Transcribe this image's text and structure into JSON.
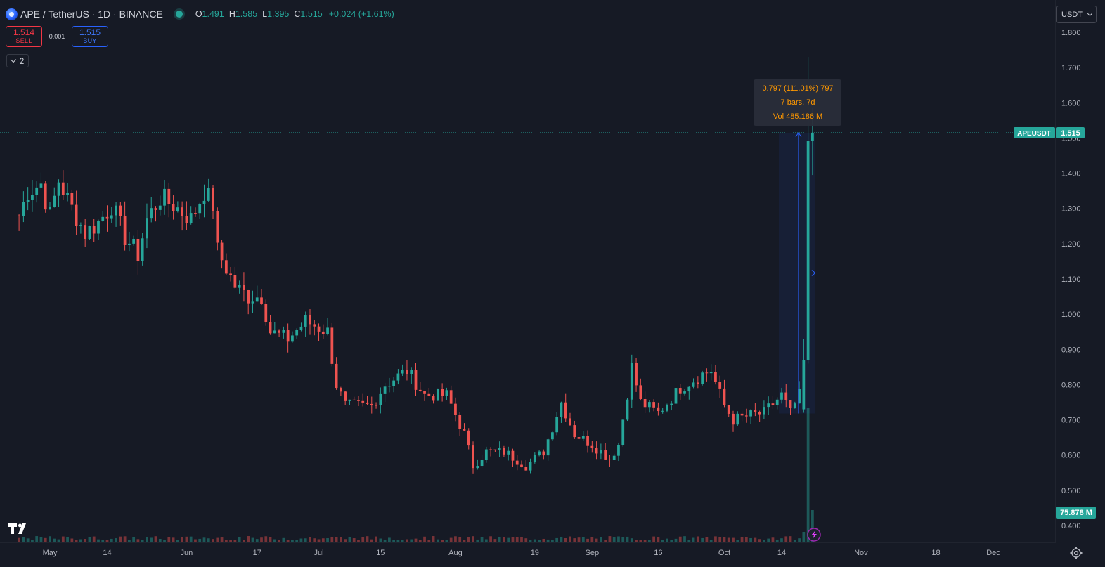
{
  "header": {
    "symbol_title": "APE / TetherUS · 1D · BINANCE",
    "ohlc": {
      "open_label": "O",
      "open": "1.491",
      "high_label": "H",
      "high": "1.585",
      "low_label": "L",
      "low": "1.395",
      "close_label": "C",
      "close": "1.515",
      "change": "+0.024 (+1.61%)"
    },
    "colors": {
      "up": "#26a69a",
      "down": "#ef5350",
      "background": "#161a25",
      "accent": "#2962ff"
    }
  },
  "trade": {
    "sell_price": "1.514",
    "sell_label": "SELL",
    "spread": "0.001",
    "buy_price": "1.515",
    "buy_label": "BUY"
  },
  "indicators_toggle": {
    "count": "2"
  },
  "currency": {
    "selected": "USDT"
  },
  "measure_tooltip": {
    "line1": "0.797 (111.01%) 797",
    "line2": "7 bars, 7d",
    "line3": "Vol 485.186 M"
  },
  "price_label": {
    "symbol": "APEUSDT",
    "value": "1.515"
  },
  "volume_label": {
    "value": "75.878 M"
  },
  "icons": [
    "symbol-logo-icon",
    "market-status-icon",
    "chevron-down-icon",
    "tradingview-logo-icon",
    "settings-icon",
    "lightning-icon"
  ],
  "chart_data": {
    "type": "candlestick",
    "title": "APE / TetherUS · 1D · BINANCE",
    "ylim": [
      0.38,
      1.86
    ],
    "y_ticks": [
      "1.800",
      "1.700",
      "1.600",
      "1.500",
      "1.400",
      "1.300",
      "1.200",
      "1.100",
      "1.000",
      "0.900",
      "0.800",
      "0.700",
      "0.600",
      "0.500",
      "0.400"
    ],
    "y_tick_values": [
      1.8,
      1.7,
      1.6,
      1.5,
      1.4,
      1.3,
      1.2,
      1.1,
      1.0,
      0.9,
      0.8,
      0.7,
      0.6,
      0.5,
      0.4
    ],
    "x_ticks": [
      {
        "label": "May",
        "date": "2024-05-01"
      },
      {
        "label": "14",
        "date": "2024-05-14"
      },
      {
        "label": "Jun",
        "date": "2024-06-01"
      },
      {
        "label": "17",
        "date": "2024-06-17"
      },
      {
        "label": "Jul",
        "date": "2024-07-01"
      },
      {
        "label": "15",
        "date": "2024-07-15"
      },
      {
        "label": "Aug",
        "date": "2024-08-01"
      },
      {
        "label": "19",
        "date": "2024-08-19"
      },
      {
        "label": "Sep",
        "date": "2024-09-01"
      },
      {
        "label": "16",
        "date": "2024-09-16"
      },
      {
        "label": "Oct",
        "date": "2024-10-01"
      },
      {
        "label": "14",
        "date": "2024-10-14"
      },
      {
        "label": "Nov",
        "date": "2024-11-01"
      },
      {
        "label": "18",
        "date": "2024-11-18"
      },
      {
        "label": "Dec",
        "date": "2024-12-01"
      }
    ],
    "last_price": 1.515,
    "grid": false,
    "keypoints": [
      {
        "date": "2024-04-24",
        "close": 1.28
      },
      {
        "date": "2024-04-26",
        "close": 1.35
      },
      {
        "date": "2024-04-29",
        "close": 1.37
      },
      {
        "date": "2024-05-01",
        "close": 1.28
      },
      {
        "date": "2024-05-03",
        "close": 1.38
      },
      {
        "date": "2024-05-06",
        "close": 1.3
      },
      {
        "date": "2024-05-09",
        "close": 1.23
      },
      {
        "date": "2024-05-12",
        "close": 1.26
      },
      {
        "date": "2024-05-15",
        "close": 1.31
      },
      {
        "date": "2024-05-18",
        "close": 1.22
      },
      {
        "date": "2024-05-21",
        "close": 1.17
      },
      {
        "date": "2024-05-23",
        "close": 1.27
      },
      {
        "date": "2024-05-26",
        "close": 1.33
      },
      {
        "date": "2024-05-29",
        "close": 1.31
      },
      {
        "date": "2024-06-02",
        "close": 1.27
      },
      {
        "date": "2024-06-05",
        "close": 1.35
      },
      {
        "date": "2024-06-07",
        "close": 1.31
      },
      {
        "date": "2024-06-08",
        "close": 1.18
      },
      {
        "date": "2024-06-12",
        "close": 1.08
      },
      {
        "date": "2024-06-15",
        "close": 1.05
      },
      {
        "date": "2024-06-18",
        "close": 1.05
      },
      {
        "date": "2024-06-20",
        "close": 0.95
      },
      {
        "date": "2024-06-24",
        "close": 0.93
      },
      {
        "date": "2024-06-28",
        "close": 0.98
      },
      {
        "date": "2024-07-03",
        "close": 0.95
      },
      {
        "date": "2024-07-05",
        "close": 0.8
      },
      {
        "date": "2024-07-07",
        "close": 0.74
      },
      {
        "date": "2024-07-13",
        "close": 0.74
      },
      {
        "date": "2024-07-16",
        "close": 0.8
      },
      {
        "date": "2024-07-21",
        "close": 0.84
      },
      {
        "date": "2024-07-25",
        "close": 0.77
      },
      {
        "date": "2024-07-30",
        "close": 0.77
      },
      {
        "date": "2024-08-03",
        "close": 0.66
      },
      {
        "date": "2024-08-05",
        "close": 0.57
      },
      {
        "date": "2024-08-08",
        "close": 0.61
      },
      {
        "date": "2024-08-12",
        "close": 0.61
      },
      {
        "date": "2024-08-17",
        "close": 0.57
      },
      {
        "date": "2024-08-21",
        "close": 0.61
      },
      {
        "date": "2024-08-25",
        "close": 0.75
      },
      {
        "date": "2024-08-28",
        "close": 0.66
      },
      {
        "date": "2024-09-01",
        "close": 0.63
      },
      {
        "date": "2024-09-05",
        "close": 0.59
      },
      {
        "date": "2024-09-07",
        "close": 0.63
      },
      {
        "date": "2024-09-10",
        "close": 0.85
      },
      {
        "date": "2024-09-12",
        "close": 0.75
      },
      {
        "date": "2024-09-16",
        "close": 0.72
      },
      {
        "date": "2024-09-21",
        "close": 0.79
      },
      {
        "date": "2024-09-26",
        "close": 0.83
      },
      {
        "date": "2024-09-28",
        "close": 0.84
      },
      {
        "date": "2024-10-01",
        "close": 0.74
      },
      {
        "date": "2024-10-03",
        "close": 0.7
      },
      {
        "date": "2024-10-06",
        "close": 0.71
      },
      {
        "date": "2024-10-10",
        "close": 0.72
      },
      {
        "date": "2024-10-14",
        "close": 0.77
      },
      {
        "date": "2024-10-16",
        "close": 0.72
      },
      {
        "date": "2024-10-18",
        "close": 0.77
      },
      {
        "date": "2024-10-19",
        "close": 0.87
      },
      {
        "date": "2024-10-20",
        "close": 1.49
      },
      {
        "date": "2024-10-21",
        "close": 1.515
      }
    ]
  }
}
